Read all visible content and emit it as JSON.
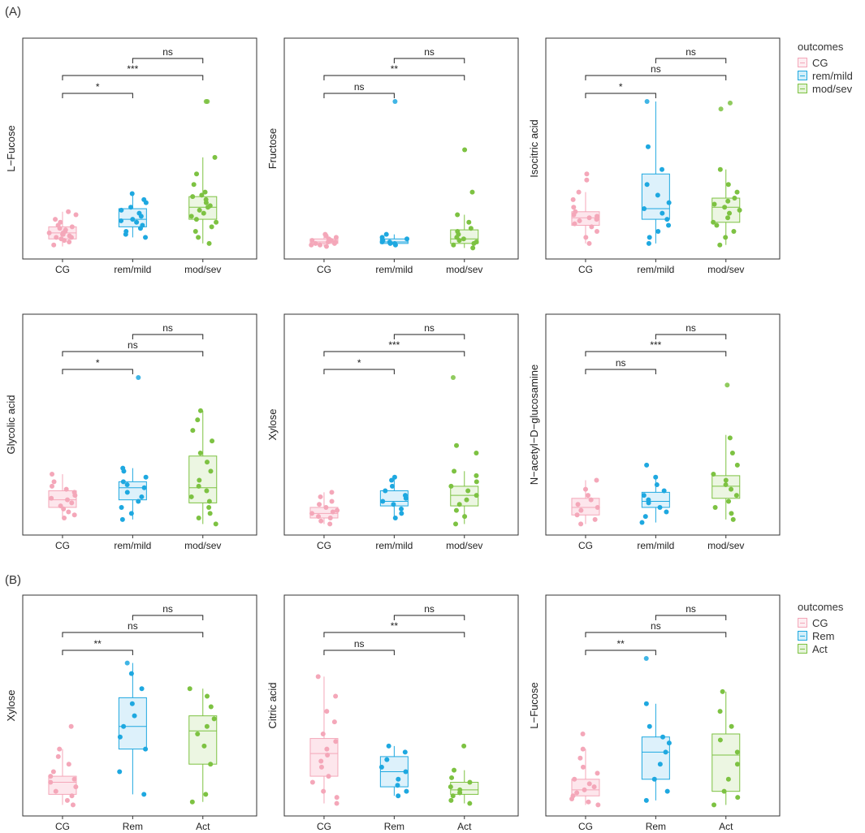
{
  "panel_labels": {
    "a": "(A)",
    "b": "(B)"
  },
  "legends": [
    {
      "title": "outcomes",
      "items": [
        {
          "label": "CG",
          "color": "#f4a7b9"
        },
        {
          "label": "rem/mild",
          "color": "#1ea8e0"
        },
        {
          "label": "mod/sev",
          "color": "#7dc242"
        }
      ]
    },
    {
      "title": "outcomes",
      "items": [
        {
          "label": "CG",
          "color": "#f4a7b9"
        },
        {
          "label": "Rem",
          "color": "#1ea8e0"
        },
        {
          "label": "Act",
          "color": "#7dc242"
        }
      ]
    }
  ],
  "chart_data": [
    {
      "type": "box",
      "ylabel": "L−Fucose",
      "categories": [
        "CG",
        "rem/mild",
        "mod/sev"
      ],
      "series": [
        {
          "q1": 0.09,
          "median": 0.13,
          "q3": 0.17,
          "min": 0.04,
          "max": 0.27,
          "points": [
            0.05,
            0.07,
            0.08,
            0.09,
            0.1,
            0.1,
            0.11,
            0.12,
            0.12,
            0.13,
            0.13,
            0.14,
            0.15,
            0.16,
            0.17,
            0.18,
            0.2,
            0.22,
            0.25,
            0.27
          ]
        },
        {
          "q1": 0.17,
          "median": 0.22,
          "q3": 0.29,
          "min": 0.1,
          "max": 0.39,
          "points": [
            0.1,
            0.12,
            0.14,
            0.16,
            0.18,
            0.2,
            0.21,
            0.22,
            0.24,
            0.26,
            0.28,
            0.3,
            0.33,
            0.35,
            0.39
          ]
        },
        {
          "q1": 0.22,
          "median": 0.3,
          "q3": 0.37,
          "min": 0.06,
          "max": 0.63,
          "points": [
            0.06,
            0.1,
            0.14,
            0.17,
            0.2,
            0.22,
            0.24,
            0.26,
            0.28,
            0.3,
            0.31,
            0.33,
            0.35,
            0.37,
            0.38,
            0.4,
            0.45,
            0.52,
            0.63,
            1.0,
            1.0
          ]
        }
      ],
      "brackets": [
        {
          "from": 0,
          "to": 1,
          "label": "*"
        },
        {
          "from": 0,
          "to": 2,
          "label": "***"
        },
        {
          "from": 1,
          "to": 2,
          "label": "ns"
        }
      ]
    },
    {
      "type": "box",
      "ylabel": "Fructose",
      "categories": [
        "CG",
        "rem/mild",
        "mod/sev"
      ],
      "series": [
        {
          "q1": 0.06,
          "median": 0.07,
          "q3": 0.09,
          "min": 0.04,
          "max": 0.12,
          "points": [
            0.04,
            0.05,
            0.05,
            0.06,
            0.06,
            0.07,
            0.07,
            0.08,
            0.08,
            0.09,
            0.1,
            0.11,
            0.12
          ]
        },
        {
          "q1": 0.06,
          "median": 0.07,
          "q3": 0.09,
          "min": 0.04,
          "max": 0.12,
          "points": [
            0.05,
            0.06,
            0.06,
            0.07,
            0.07,
            0.08,
            0.09,
            0.1,
            0.12,
            1.0
          ]
        },
        {
          "q1": 0.06,
          "median": 0.09,
          "q3": 0.15,
          "min": 0.03,
          "max": 0.25,
          "points": [
            0.03,
            0.05,
            0.06,
            0.07,
            0.08,
            0.09,
            0.1,
            0.12,
            0.14,
            0.16,
            0.2,
            0.25,
            0.4,
            0.68
          ]
        }
      ],
      "brackets": [
        {
          "from": 0,
          "to": 1,
          "label": "ns"
        },
        {
          "from": 0,
          "to": 2,
          "label": "**"
        },
        {
          "from": 1,
          "to": 2,
          "label": "ns"
        }
      ]
    },
    {
      "type": "box",
      "ylabel": "Isocitric acid",
      "categories": [
        "CG",
        "rem/mild",
        "mod/sev"
      ],
      "series": [
        {
          "q1": 0.18,
          "median": 0.23,
          "q3": 0.27,
          "min": 0.06,
          "max": 0.4,
          "points": [
            0.06,
            0.1,
            0.14,
            0.17,
            0.19,
            0.21,
            0.22,
            0.23,
            0.24,
            0.25,
            0.27,
            0.3,
            0.35,
            0.4,
            0.48,
            0.52
          ]
        },
        {
          "q1": 0.22,
          "median": 0.29,
          "q3": 0.52,
          "min": 0.06,
          "max": 1.0,
          "points": [
            0.06,
            0.1,
            0.14,
            0.18,
            0.22,
            0.26,
            0.29,
            0.33,
            0.38,
            0.45,
            0.55,
            0.7,
            1.0
          ]
        },
        {
          "q1": 0.2,
          "median": 0.3,
          "q3": 0.36,
          "min": 0.05,
          "max": 0.55,
          "points": [
            0.05,
            0.1,
            0.14,
            0.18,
            0.2,
            0.23,
            0.26,
            0.28,
            0.3,
            0.32,
            0.34,
            0.36,
            0.4,
            0.45,
            0.55,
            0.95,
            0.99
          ]
        }
      ],
      "brackets": [
        {
          "from": 0,
          "to": 1,
          "label": "*"
        },
        {
          "from": 0,
          "to": 2,
          "label": "ns"
        },
        {
          "from": 1,
          "to": 2,
          "label": "ns"
        }
      ]
    },
    {
      "type": "box",
      "ylabel": "Glycolic acid",
      "categories": [
        "CG",
        "rem/mild",
        "mod/sev"
      ],
      "series": [
        {
          "q1": 0.14,
          "median": 0.19,
          "q3": 0.25,
          "min": 0.07,
          "max": 0.36,
          "points": [
            0.07,
            0.09,
            0.11,
            0.13,
            0.15,
            0.17,
            0.19,
            0.2,
            0.22,
            0.24,
            0.26,
            0.28,
            0.31,
            0.36
          ]
        },
        {
          "q1": 0.19,
          "median": 0.27,
          "q3": 0.31,
          "min": 0.06,
          "max": 0.4,
          "points": [
            0.06,
            0.1,
            0.14,
            0.18,
            0.21,
            0.24,
            0.27,
            0.29,
            0.31,
            0.34,
            0.38,
            0.4,
            1.0
          ]
        },
        {
          "q1": 0.17,
          "median": 0.27,
          "q3": 0.48,
          "min": 0.03,
          "max": 0.78,
          "points": [
            0.03,
            0.07,
            0.1,
            0.14,
            0.18,
            0.21,
            0.25,
            0.28,
            0.32,
            0.38,
            0.44,
            0.5,
            0.58,
            0.65,
            0.72,
            0.78
          ]
        }
      ],
      "brackets": [
        {
          "from": 0,
          "to": 1,
          "label": "*"
        },
        {
          "from": 0,
          "to": 2,
          "label": "ns"
        },
        {
          "from": 1,
          "to": 2,
          "label": "ns"
        }
      ]
    },
    {
      "type": "box",
      "ylabel": "Xylose",
      "categories": [
        "CG",
        "rem/mild",
        "mod/sev"
      ],
      "series": [
        {
          "q1": 0.07,
          "median": 0.1,
          "q3": 0.14,
          "min": 0.03,
          "max": 0.24,
          "points": [
            0.03,
            0.05,
            0.07,
            0.08,
            0.1,
            0.11,
            0.12,
            0.14,
            0.16,
            0.18,
            0.21,
            0.24
          ]
        },
        {
          "q1": 0.15,
          "median": 0.18,
          "q3": 0.25,
          "min": 0.07,
          "max": 0.34,
          "points": [
            0.07,
            0.1,
            0.13,
            0.16,
            0.18,
            0.2,
            0.22,
            0.25,
            0.28,
            0.32,
            0.34
          ]
        },
        {
          "q1": 0.15,
          "median": 0.22,
          "q3": 0.28,
          "min": 0.03,
          "max": 0.38,
          "points": [
            0.03,
            0.08,
            0.12,
            0.16,
            0.19,
            0.22,
            0.25,
            0.28,
            0.31,
            0.35,
            0.38,
            0.5,
            0.55,
            1.0
          ]
        }
      ],
      "brackets": [
        {
          "from": 0,
          "to": 1,
          "label": "*"
        },
        {
          "from": 0,
          "to": 2,
          "label": "***"
        },
        {
          "from": 1,
          "to": 2,
          "label": "ns"
        }
      ]
    },
    {
      "type": "box",
      "ylabel": "N−acetyl−D−glucosamine",
      "categories": [
        "CG",
        "rem/mild",
        "mod/sev"
      ],
      "series": [
        {
          "q1": 0.09,
          "median": 0.14,
          "q3": 0.2,
          "min": 0.03,
          "max": 0.32,
          "points": [
            0.03,
            0.06,
            0.09,
            0.12,
            0.14,
            0.16,
            0.19,
            0.22,
            0.26,
            0.32
          ]
        },
        {
          "q1": 0.14,
          "median": 0.18,
          "q3": 0.24,
          "min": 0.04,
          "max": 0.34,
          "points": [
            0.04,
            0.08,
            0.11,
            0.14,
            0.17,
            0.19,
            0.22,
            0.25,
            0.29,
            0.34,
            0.42
          ]
        },
        {
          "q1": 0.2,
          "median": 0.28,
          "q3": 0.35,
          "min": 0.06,
          "max": 0.62,
          "points": [
            0.06,
            0.1,
            0.14,
            0.18,
            0.22,
            0.26,
            0.29,
            0.32,
            0.36,
            0.42,
            0.5,
            0.6,
            0.95
          ]
        }
      ],
      "brackets": [
        {
          "from": 0,
          "to": 1,
          "label": "ns"
        },
        {
          "from": 0,
          "to": 2,
          "label": "***"
        },
        {
          "from": 1,
          "to": 2,
          "label": "ns"
        }
      ]
    },
    {
      "type": "box",
      "ylabel": "Xylose",
      "categories": [
        "CG",
        "Rem",
        "Act"
      ],
      "series": [
        {
          "q1": 0.1,
          "median": 0.18,
          "q3": 0.22,
          "min": 0.03,
          "max": 0.4,
          "points": [
            0.03,
            0.06,
            0.09,
            0.12,
            0.15,
            0.18,
            0.2,
            0.22,
            0.25,
            0.3,
            0.35,
            0.4,
            0.55
          ]
        },
        {
          "q1": 0.4,
          "median": 0.55,
          "q3": 0.74,
          "min": 0.1,
          "max": 0.97,
          "points": [
            0.1,
            0.25,
            0.4,
            0.48,
            0.55,
            0.62,
            0.7,
            0.8,
            0.9,
            0.97
          ]
        },
        {
          "q1": 0.3,
          "median": 0.52,
          "q3": 0.62,
          "min": 0.05,
          "max": 0.8,
          "points": [
            0.05,
            0.1,
            0.3,
            0.42,
            0.5,
            0.55,
            0.6,
            0.68,
            0.75,
            0.8
          ]
        }
      ],
      "brackets": [
        {
          "from": 0,
          "to": 1,
          "label": "**"
        },
        {
          "from": 0,
          "to": 2,
          "label": "ns"
        },
        {
          "from": 1,
          "to": 2,
          "label": "ns"
        }
      ]
    },
    {
      "type": "box",
      "ylabel": "Citric acid",
      "categories": [
        "CG",
        "Rem",
        "Act"
      ],
      "series": [
        {
          "q1": 0.22,
          "median": 0.37,
          "q3": 0.47,
          "min": 0.04,
          "max": 0.88,
          "points": [
            0.04,
            0.08,
            0.12,
            0.18,
            0.22,
            0.28,
            0.32,
            0.36,
            0.4,
            0.45,
            0.5,
            0.58,
            0.65,
            0.75,
            0.88
          ]
        },
        {
          "q1": 0.15,
          "median": 0.25,
          "q3": 0.35,
          "min": 0.09,
          "max": 0.42,
          "points": [
            0.09,
            0.12,
            0.16,
            0.2,
            0.25,
            0.28,
            0.33,
            0.38,
            0.42
          ]
        },
        {
          "q1": 0.1,
          "median": 0.13,
          "q3": 0.18,
          "min": 0.04,
          "max": 0.26,
          "points": [
            0.04,
            0.06,
            0.09,
            0.11,
            0.13,
            0.15,
            0.18,
            0.21,
            0.26,
            0.42
          ]
        }
      ],
      "brackets": [
        {
          "from": 0,
          "to": 1,
          "label": "ns"
        },
        {
          "from": 0,
          "to": 2,
          "label": "**"
        },
        {
          "from": 1,
          "to": 2,
          "label": "ns"
        }
      ]
    },
    {
      "type": "box",
      "ylabel": "L−Fucose",
      "categories": [
        "CG",
        "Rem",
        "Act"
      ],
      "series": [
        {
          "q1": 0.09,
          "median": 0.13,
          "q3": 0.2,
          "min": 0.03,
          "max": 0.4,
          "points": [
            0.03,
            0.05,
            0.07,
            0.09,
            0.11,
            0.13,
            0.15,
            0.17,
            0.2,
            0.24,
            0.28,
            0.34,
            0.4,
            0.5
          ]
        },
        {
          "q1": 0.2,
          "median": 0.38,
          "q3": 0.48,
          "min": 0.06,
          "max": 0.7,
          "points": [
            0.06,
            0.12,
            0.2,
            0.3,
            0.38,
            0.44,
            0.48,
            0.55,
            0.7,
            1.0
          ]
        },
        {
          "q1": 0.12,
          "median": 0.36,
          "q3": 0.5,
          "min": 0.03,
          "max": 0.78,
          "points": [
            0.03,
            0.08,
            0.12,
            0.2,
            0.3,
            0.38,
            0.46,
            0.55,
            0.65,
            0.78
          ]
        }
      ],
      "brackets": [
        {
          "from": 0,
          "to": 1,
          "label": "**"
        },
        {
          "from": 0,
          "to": 2,
          "label": "ns"
        },
        {
          "from": 1,
          "to": 2,
          "label": "ns"
        }
      ]
    }
  ]
}
